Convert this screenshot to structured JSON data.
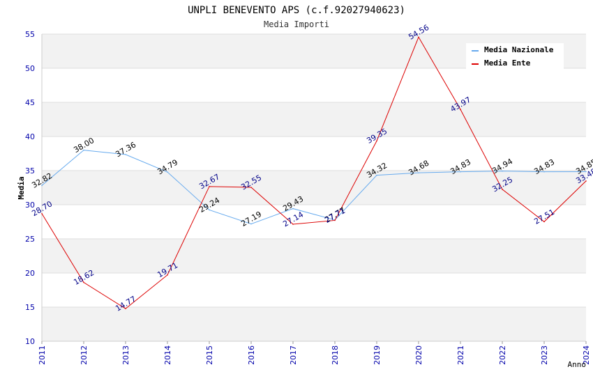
{
  "chart_data": {
    "type": "line",
    "title": "UNPLI BENEVENTO APS (c.f.92027940623)",
    "subtitle": "Media Importi",
    "xlabel": "Anno",
    "ylabel": "Media",
    "ylim": [
      10,
      55
    ],
    "yticks": [
      "10",
      "15",
      "20",
      "25",
      "30",
      "35",
      "40",
      "45",
      "50",
      "55"
    ],
    "categories": [
      "2011",
      "2012",
      "2013",
      "2014",
      "2015",
      "2016",
      "2017",
      "2018",
      "2019",
      "2020",
      "2021",
      "2022",
      "2023",
      "2024"
    ],
    "legend_position": "top-right",
    "series": [
      {
        "name": "Media Nazionale",
        "color": "#66aaee",
        "label_color": "#000000",
        "values": [
          32.82,
          38.0,
          37.36,
          34.79,
          29.24,
          27.19,
          29.43,
          27.77,
          34.32,
          34.68,
          34.83,
          34.94,
          34.83,
          34.85
        ],
        "labels": [
          "32.82",
          "38.00",
          "37.36",
          "34.79",
          "29.24",
          "27.19",
          "29.43",
          "27.77",
          "34.32",
          "34.68",
          "34.83",
          "34.94",
          "34.83",
          "34.85"
        ]
      },
      {
        "name": "Media Ente",
        "color": "#dd0000",
        "label_color": "#000088",
        "values": [
          28.7,
          18.62,
          14.77,
          19.71,
          32.67,
          32.55,
          27.14,
          27.71,
          39.35,
          54.56,
          43.97,
          32.25,
          27.51,
          33.48
        ],
        "labels": [
          "28.70",
          "18.62",
          "14.77",
          "19.71",
          "32.67",
          "32.55",
          "27.14",
          "27.71",
          "39.35",
          "54.56",
          "43.97",
          "32.25",
          "27.51",
          "33.48"
        ]
      }
    ]
  }
}
